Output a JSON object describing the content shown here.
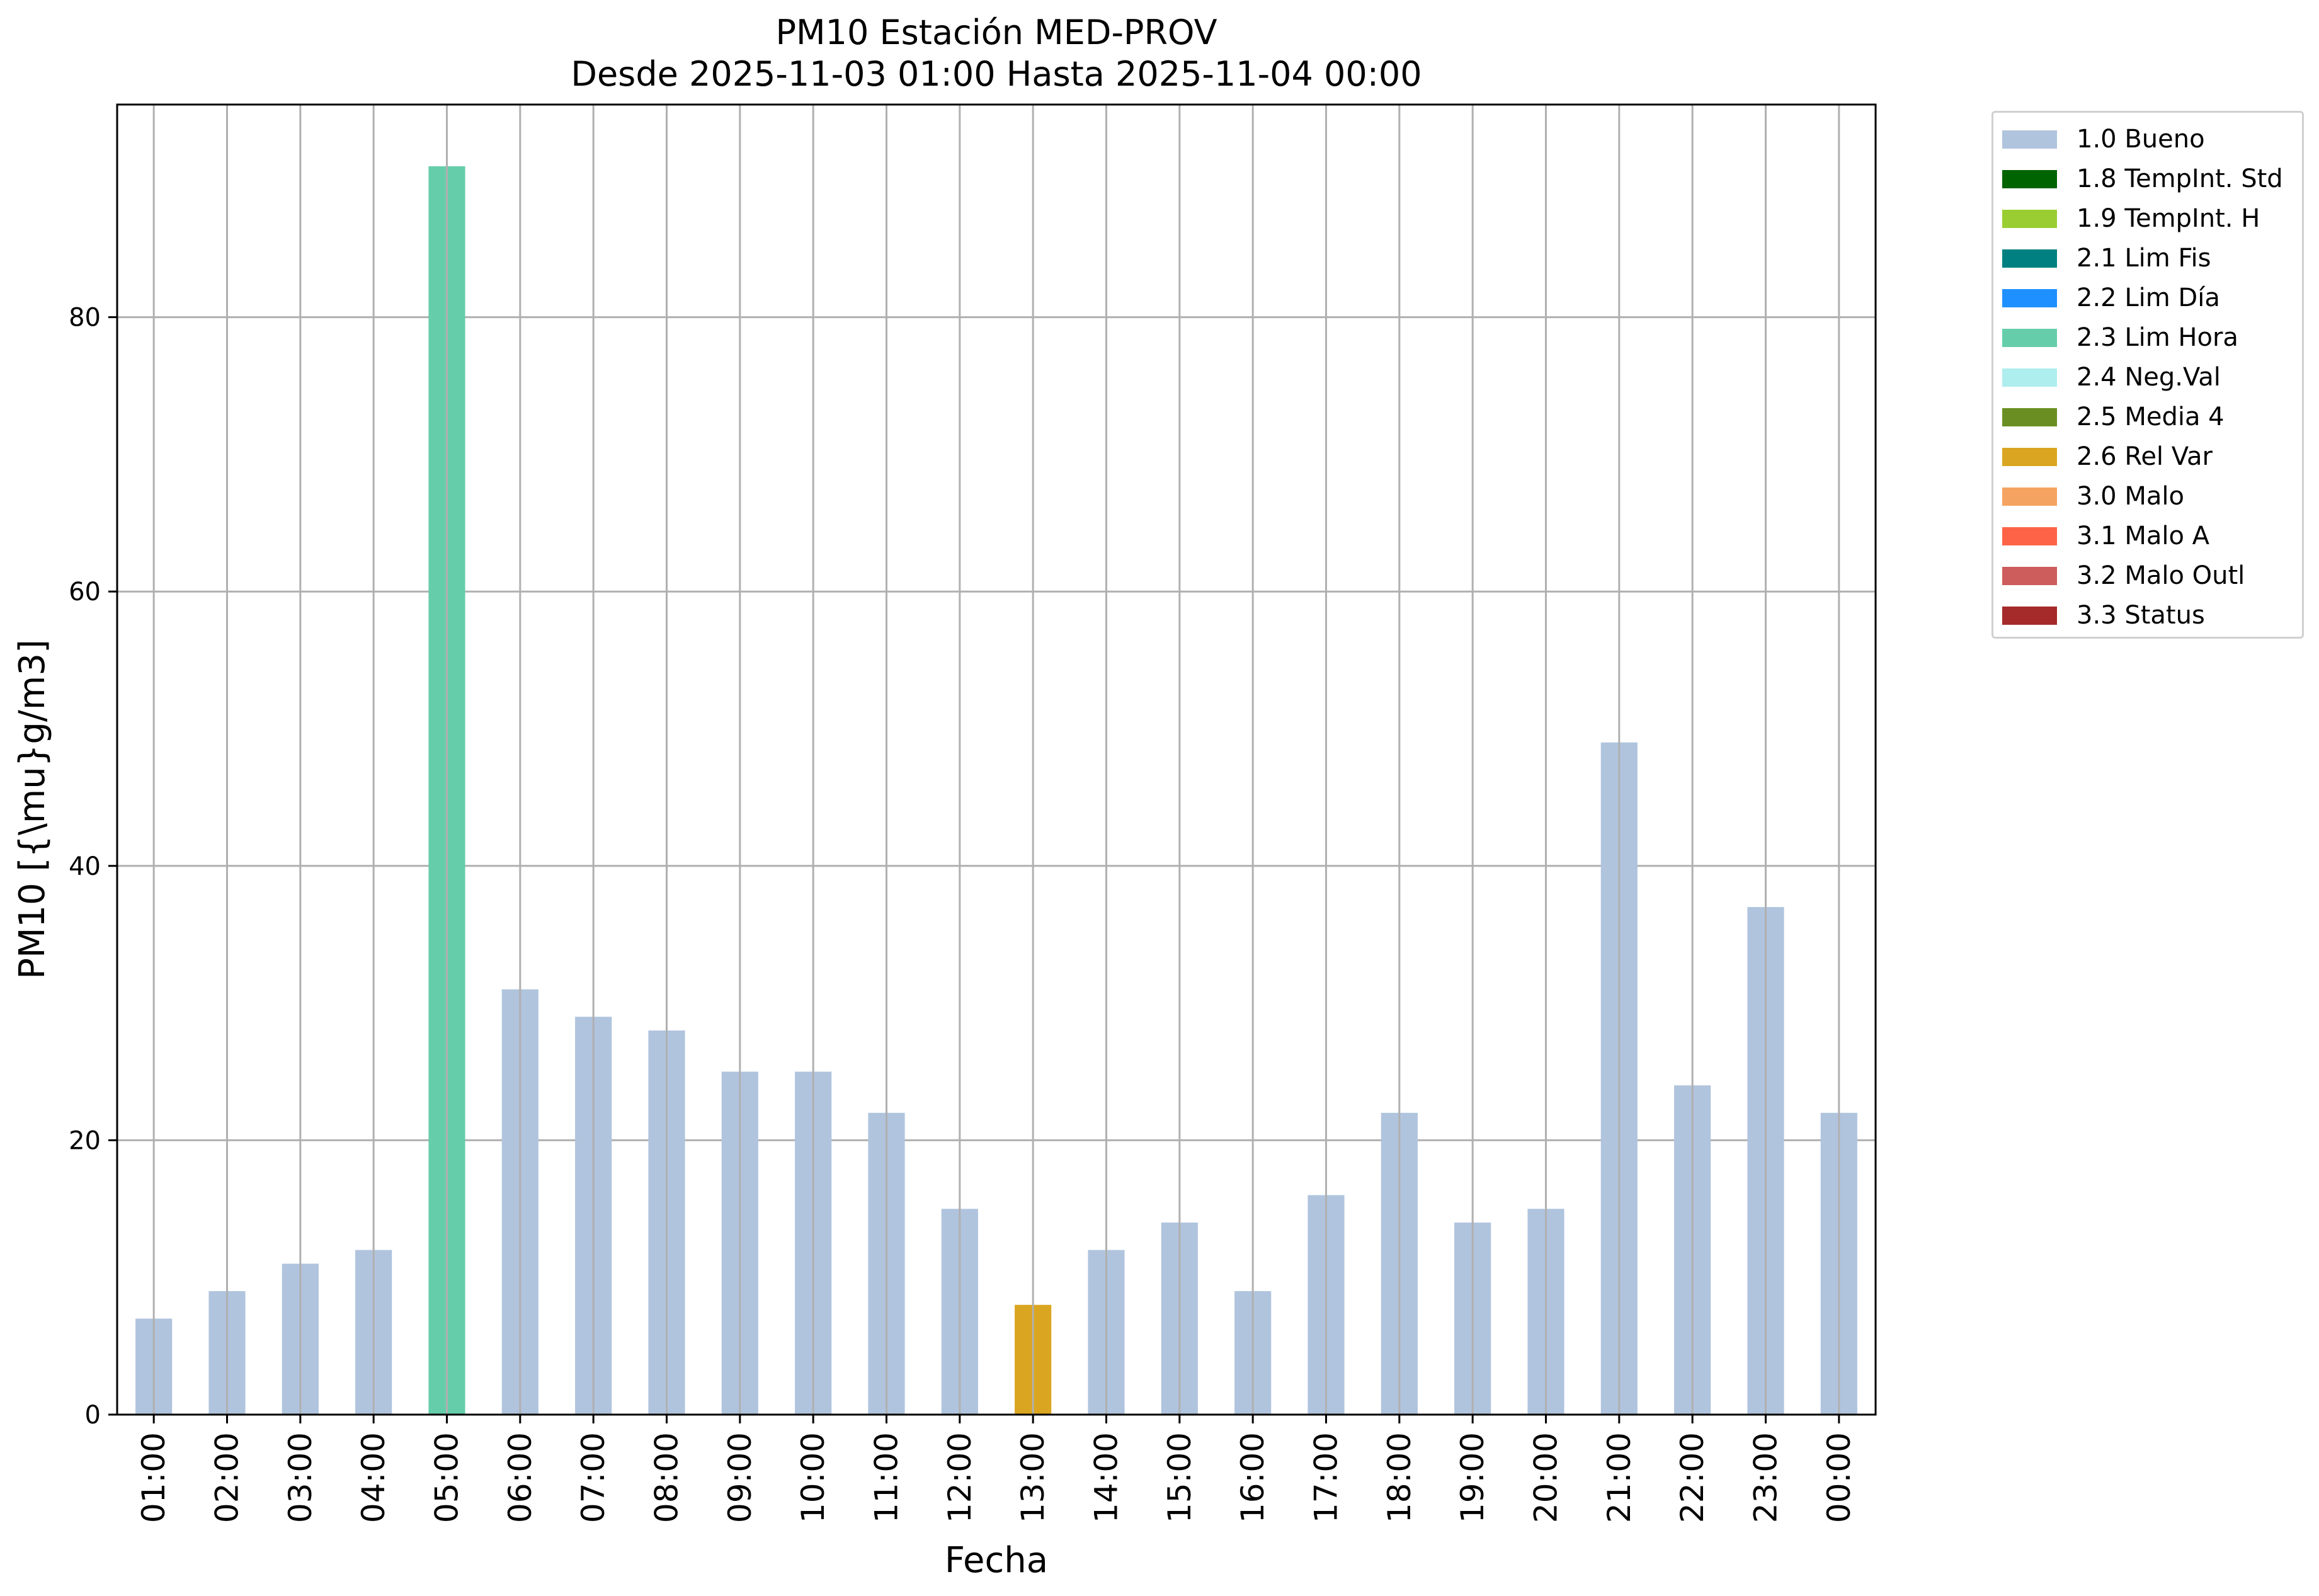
{
  "chart_data": {
    "type": "bar",
    "title": "PM10 Estación MED-PROV",
    "subtitle": "Desde 2025-11-03 01:00 Hasta 2025-11-04 00:00",
    "xlabel": "Fecha",
    "ylabel": "PM10 [{\\mu}g/m3]",
    "ylim": [
      0,
      95.5
    ],
    "yticks": [
      0,
      20,
      40,
      60,
      80
    ],
    "grid": true,
    "legend_position": "outside-top-right",
    "categories": [
      "01:00",
      "02:00",
      "03:00",
      "04:00",
      "05:00",
      "06:00",
      "07:00",
      "08:00",
      "09:00",
      "10:00",
      "11:00",
      "12:00",
      "13:00",
      "14:00",
      "15:00",
      "16:00",
      "17:00",
      "18:00",
      "19:00",
      "20:00",
      "21:00",
      "22:00",
      "23:00",
      "00:00"
    ],
    "values": [
      7,
      9,
      11,
      12,
      91,
      31,
      29,
      28,
      25,
      25,
      22,
      15,
      8,
      12,
      14,
      9,
      16,
      22,
      14,
      15,
      49,
      24,
      37,
      22
    ],
    "flags": [
      "1.0 Bueno",
      "1.0 Bueno",
      "1.0 Bueno",
      "1.0 Bueno",
      "2.3 Lim Hora",
      "1.0 Bueno",
      "1.0 Bueno",
      "1.0 Bueno",
      "1.0 Bueno",
      "1.0 Bueno",
      "1.0 Bueno",
      "1.0 Bueno",
      "2.6 Rel Var",
      "1.0 Bueno",
      "1.0 Bueno",
      "1.0 Bueno",
      "1.0 Bueno",
      "1.0 Bueno",
      "1.0 Bueno",
      "1.0 Bueno",
      "1.0 Bueno",
      "1.0 Bueno",
      "1.0 Bueno",
      "1.0 Bueno"
    ],
    "legend": [
      {
        "label": "1.0 Bueno",
        "color": "#b0c4de"
      },
      {
        "label": "1.8 TempInt. Std",
        "color": "#006400"
      },
      {
        "label": "1.9 TempInt. H",
        "color": "#9acd32"
      },
      {
        "label": "2.1 Lim Fis",
        "color": "#008080"
      },
      {
        "label": "2.2 Lim Día",
        "color": "#1e90ff"
      },
      {
        "label": "2.3 Lim Hora",
        "color": "#66cdaa"
      },
      {
        "label": "2.4 Neg.Val",
        "color": "#afeeee"
      },
      {
        "label": "2.5 Media 4",
        "color": "#6b8e23"
      },
      {
        "label": "2.6 Rel Var",
        "color": "#daa520"
      },
      {
        "label": "3.0 Malo",
        "color": "#f4a460"
      },
      {
        "label": "3.1 Malo A",
        "color": "#ff6347"
      },
      {
        "label": "3.2 Malo Outl",
        "color": "#cd5c5c"
      },
      {
        "label": "3.3 Status",
        "color": "#a52a2a"
      }
    ]
  }
}
